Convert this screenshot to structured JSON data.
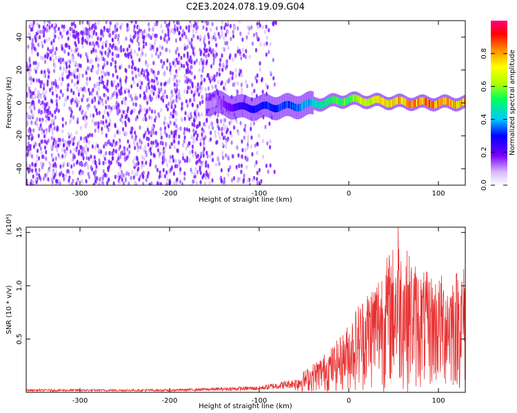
{
  "title": "C2E3.2024.078.19.09.G04",
  "chart_data": [
    {
      "type": "heatmap",
      "xlabel": "Height of straight line (km)",
      "ylabel": "Frequency (Hz)",
      "xlim": [
        -360,
        130
      ],
      "ylim": [
        -50,
        50
      ],
      "xticks": [
        -300,
        -200,
        -100,
        0,
        100
      ],
      "yticks": [
        -40,
        -20,
        0,
        20,
        40
      ],
      "colorbar": {
        "label": "Normalized spectral amplitude",
        "range": [
          0,
          1
        ],
        "ticks": [
          0.0,
          0.2,
          0.4,
          0.6,
          0.8
        ],
        "tick_labels": [
          "0.0",
          "0.2",
          "0.4",
          "0.6",
          "0.8"
        ],
        "colormap": [
          "#ffffff",
          "#7a00ff",
          "#0000ff",
          "#00c8ff",
          "#00ff00",
          "#ffff00",
          "#ff8000",
          "#ff0000",
          "#ff0080"
        ]
      },
      "signal_band": [
        {
          "x": -150,
          "center_hz": 0,
          "amplitude": 0.12
        },
        {
          "x": -120,
          "center_hz": -3,
          "amplitude": 0.3
        },
        {
          "x": -60,
          "center_hz": -2,
          "amplitude": 0.4
        },
        {
          "x": -30,
          "center_hz": 0,
          "amplitude": 0.55
        },
        {
          "x": 0,
          "center_hz": 2,
          "amplitude": 0.65
        },
        {
          "x": 30,
          "center_hz": 1,
          "amplitude": 0.8
        },
        {
          "x": 80,
          "center_hz": 0,
          "amplitude": 0.95
        },
        {
          "x": 125,
          "center_hz": 0,
          "amplitude": 0.85
        }
      ]
    },
    {
      "type": "line",
      "xlabel": "Height of straight line (km)",
      "ylabel": "SNR (10 * v/v)",
      "y_multiplier": "(x10⁴)",
      "xlim": [
        -360,
        130
      ],
      "ylim": [
        0,
        1.55
      ],
      "xticks": [
        -300,
        -200,
        -100,
        0,
        100
      ],
      "yticks": [
        0.5,
        1.0,
        1.5
      ],
      "ytick_labels": [
        "0.5",
        "1.0",
        "1.5"
      ],
      "series": [
        {
          "color": "#e83030",
          "envelope": [
            {
              "x": -360,
              "y": 0.03
            },
            {
              "x": -200,
              "y": 0.03
            },
            {
              "x": -100,
              "y": 0.06
            },
            {
              "x": -60,
              "y": 0.13
            },
            {
              "x": -40,
              "y": 0.26
            },
            {
              "x": -20,
              "y": 0.4
            },
            {
              "x": -5,
              "y": 0.55
            },
            {
              "x": 10,
              "y": 0.8
            },
            {
              "x": 30,
              "y": 1.05
            },
            {
              "x": 55,
              "y": 1.4
            },
            {
              "x": 80,
              "y": 1.1
            },
            {
              "x": 100,
              "y": 1.05
            },
            {
              "x": 130,
              "y": 1.15
            }
          ],
          "peak": {
            "x": 55,
            "y": 1.55
          }
        }
      ]
    }
  ]
}
